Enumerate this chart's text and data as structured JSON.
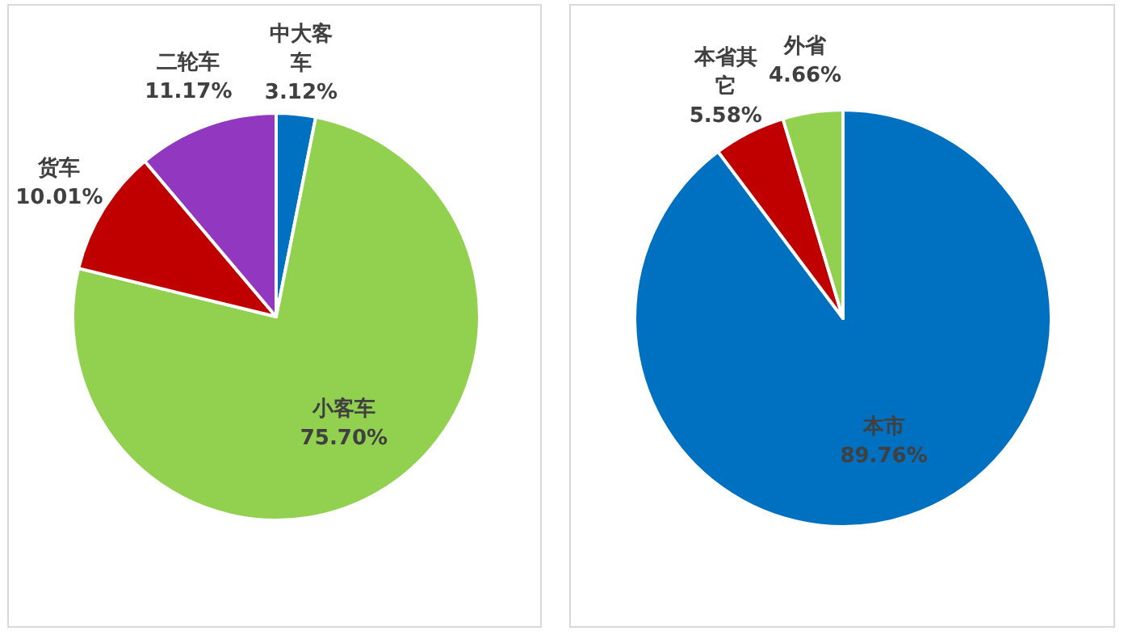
{
  "chart_data": [
    {
      "type": "pie",
      "categories": [
        "中大客车",
        "小客车",
        "货车",
        "二轮车"
      ],
      "values": [
        3.12,
        75.7,
        10.01,
        11.17
      ],
      "colors": [
        "#0070c0",
        "#92d050",
        "#c00000",
        "#9237c0"
      ],
      "value_labels": [
        "3.12%",
        "75.70%",
        "10.01%",
        "11.17%"
      ]
    },
    {
      "type": "pie",
      "categories": [
        "本市",
        "本省其它",
        "外省"
      ],
      "values": [
        89.76,
        5.58,
        4.66
      ],
      "colors": [
        "#0070c0",
        "#c00000",
        "#92d050"
      ],
      "value_labels": [
        "89.76%",
        "5.58%",
        "4.66%"
      ]
    }
  ]
}
